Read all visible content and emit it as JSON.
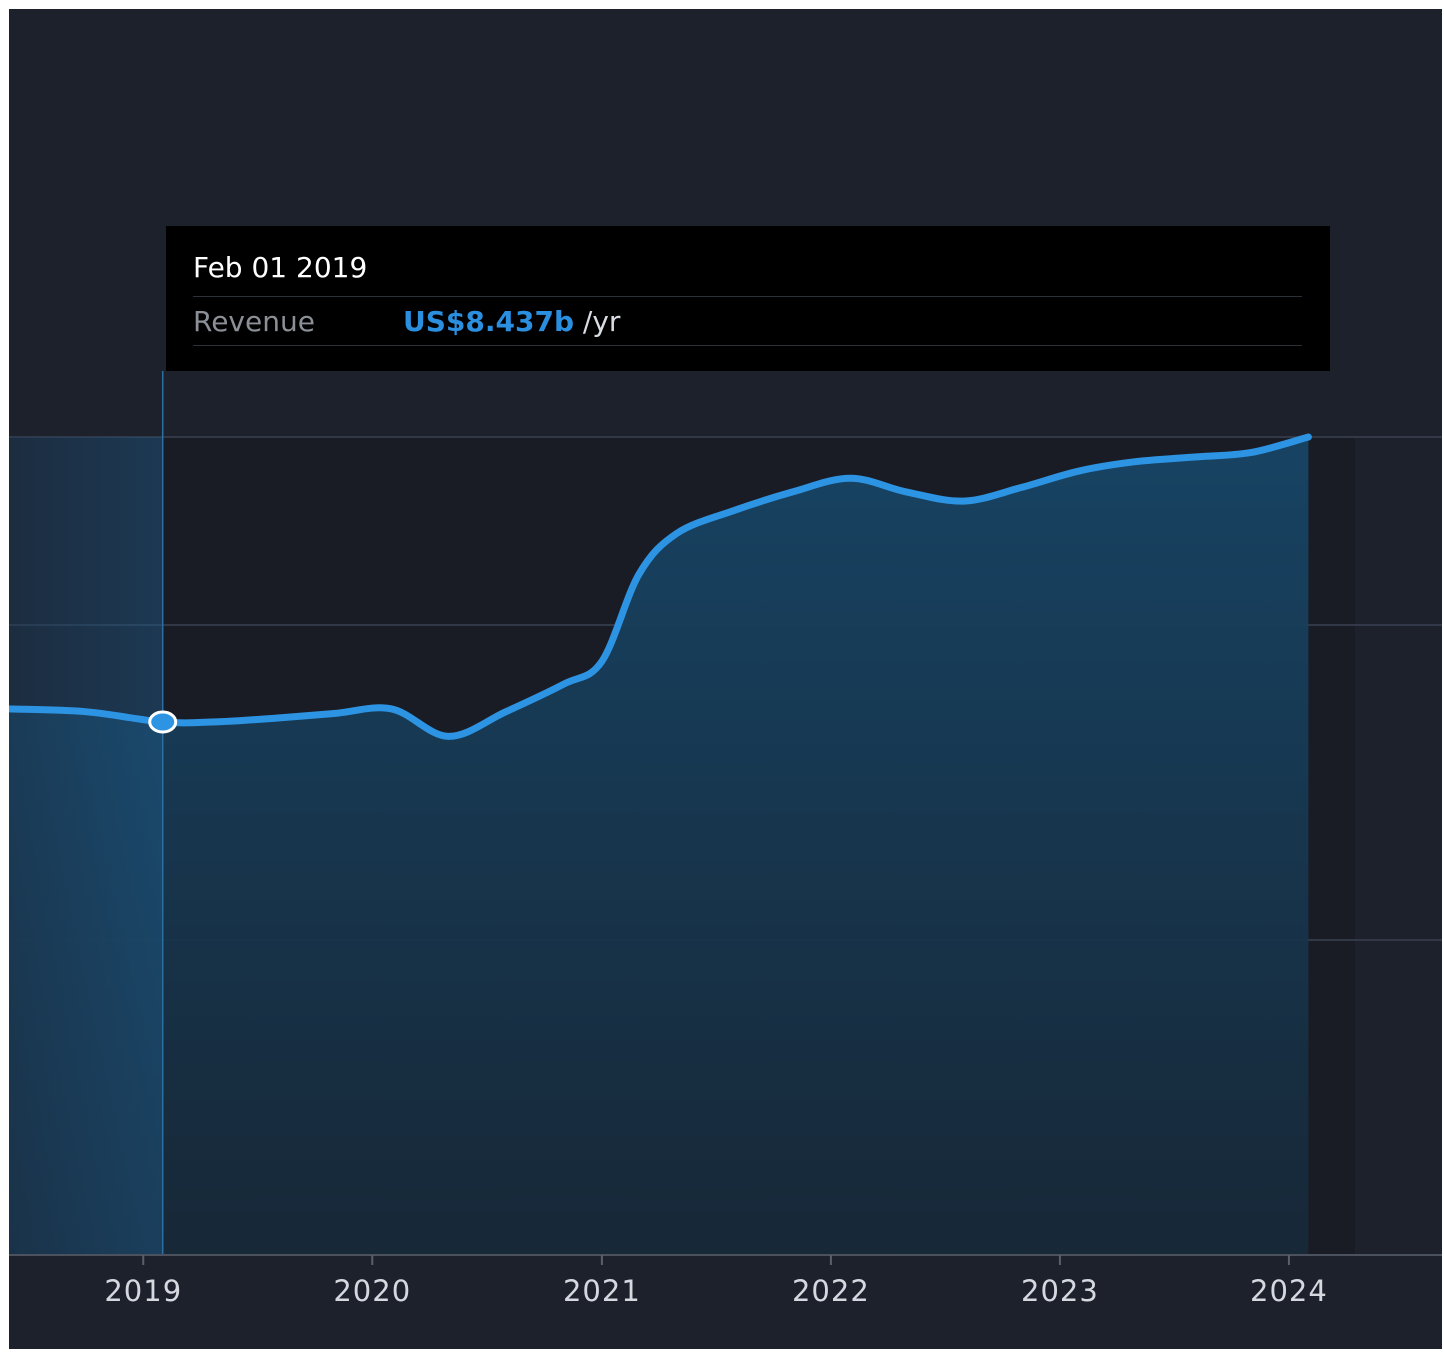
{
  "colors": {
    "background": "#1d212c",
    "plot_background": "#1a1c25",
    "line": "#2d94e3",
    "area_fill": "#1b4a6d",
    "gridline": "#3a4150",
    "tooltip_background": "#000000",
    "tooltip_value": "#2b8fe0"
  },
  "tooltip": {
    "date": "Feb 01 2019",
    "series_label": "Revenue",
    "value": "US$8.437b",
    "unit": "/yr"
  },
  "chart_data": {
    "type": "area",
    "series": [
      {
        "name": "Revenue",
        "unit": "US$b /yr",
        "points": [
          [
            "2018-07-01",
            8.58
          ],
          [
            "2018-10-01",
            8.55
          ],
          [
            "2019-02-01",
            8.437
          ],
          [
            "2019-05-01",
            8.44
          ],
          [
            "2019-08-01",
            8.48
          ],
          [
            "2019-11-01",
            8.53
          ],
          [
            "2020-02-01",
            8.58
          ],
          [
            "2020-05-01",
            8.28
          ],
          [
            "2020-08-01",
            8.55
          ],
          [
            "2020-11-01",
            8.85
          ],
          [
            "2021-01-01",
            9.1
          ],
          [
            "2021-03-01",
            10.05
          ],
          [
            "2021-05-01",
            10.5
          ],
          [
            "2021-08-01",
            10.75
          ],
          [
            "2021-11-01",
            10.95
          ],
          [
            "2022-02-01",
            11.1
          ],
          [
            "2022-05-01",
            10.95
          ],
          [
            "2022-08-01",
            10.85
          ],
          [
            "2022-11-01",
            11.0
          ],
          [
            "2023-02-01",
            11.18
          ],
          [
            "2023-05-01",
            11.28
          ],
          [
            "2023-08-01",
            11.33
          ],
          [
            "2023-11-01",
            11.38
          ],
          [
            "2024-02-01",
            11.55
          ]
        ]
      }
    ],
    "x_tick_labels": [
      "2019",
      "2020",
      "2021",
      "2022",
      "2023",
      "2024"
    ],
    "xlim": [
      "2018-06-01",
      "2024-09-01"
    ],
    "ylim": [
      0,
      11.55
    ],
    "highlighted_point": {
      "x": "2019-02-01",
      "y": 8.437
    },
    "grid": "horizontal",
    "legend": "none"
  }
}
